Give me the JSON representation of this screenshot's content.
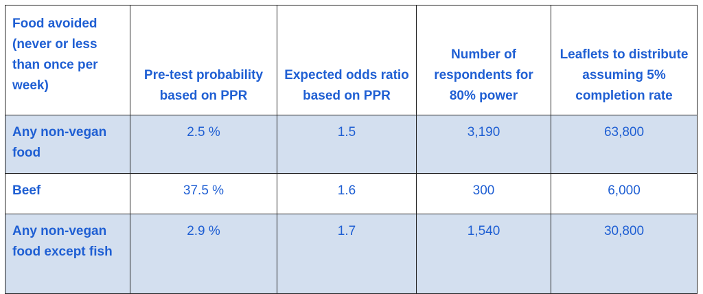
{
  "table": {
    "headers": [
      "Food avoided (never or less than once per week)",
      "Pre-test probability based on PPR",
      "Expected odds ratio based on PPR",
      "Number of respondents for 80% power",
      "Leaflets to distribute assuming 5% completion rate"
    ],
    "rows": [
      {
        "food": "Any non-vegan food",
        "probability": "2.5 %",
        "odds_ratio": "1.5",
        "respondents": "3,190",
        "leaflets": "63,800"
      },
      {
        "food": "Beef",
        "probability": "37.5 %",
        "odds_ratio": "1.6",
        "respondents": "300",
        "leaflets": "6,000"
      },
      {
        "food": "Any non-vegan food except fish",
        "probability": "2.9 %",
        "odds_ratio": "1.7",
        "respondents": "1,540",
        "leaflets": "30,800"
      }
    ]
  },
  "colors": {
    "text": "#1f5fd3",
    "shaded_row": "#d3dfef",
    "border": "#222222"
  }
}
